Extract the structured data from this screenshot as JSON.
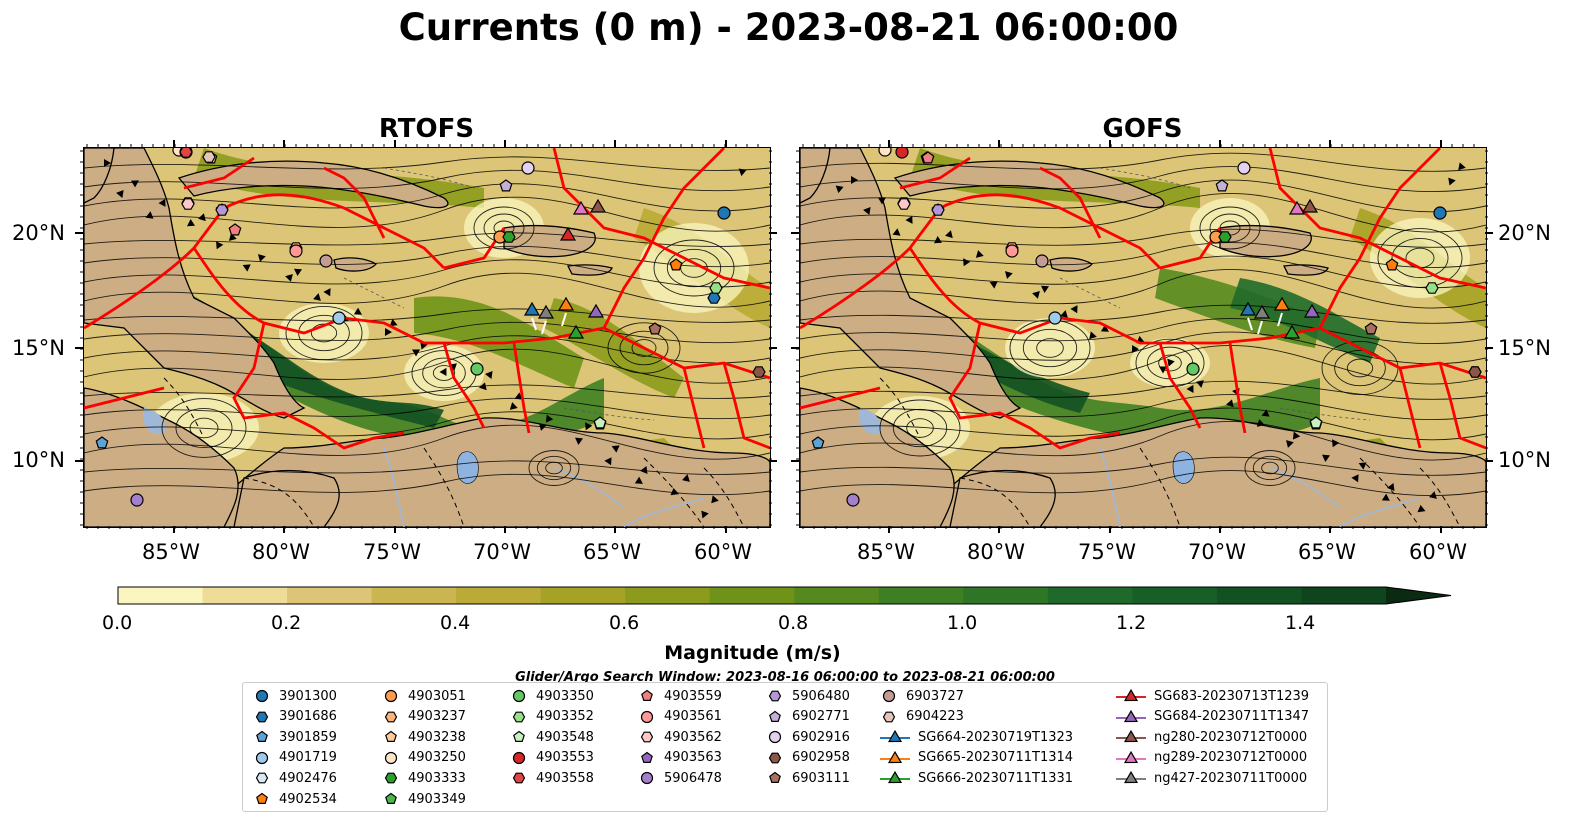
{
  "title": "Currents (0 m) - 2023-08-21 06:00:00",
  "panels": [
    {
      "title": "RTOFS",
      "variant": 0
    },
    {
      "title": "GOFS",
      "variant": 1
    }
  ],
  "axes": {
    "x_ticks": [
      "85°W",
      "80°W",
      "75°W",
      "70°W",
      "65°W",
      "60°W"
    ],
    "y_ticks": [
      "20°N",
      "15°N",
      "10°N"
    ]
  },
  "colorbar": {
    "label": "Magnitude (m/s)",
    "ticks": [
      "0.0",
      "0.2",
      "0.4",
      "0.6",
      "0.8",
      "1.0",
      "1.2",
      "1.4"
    ],
    "extend": "max",
    "colors": [
      "#fbf6c0",
      "#eedc99",
      "#dcc576",
      "#cbb550",
      "#b9ab35",
      "#a6a226",
      "#8c9b1b",
      "#6f9318",
      "#55891f",
      "#3f7f23",
      "#2e7526",
      "#1f6a2a",
      "#175f27",
      "#125222",
      "#0f441c",
      "#0d3616",
      "#0b2a12"
    ]
  },
  "search_window": "Glider/Argo Search Window: 2023-08-16 06:00:00 to 2023-08-21 06:00:00",
  "legend": {
    "columns": [
      [
        {
          "label": "3901300",
          "marker": "circle",
          "color": "#1f77b4"
        },
        {
          "label": "3901686",
          "marker": "hexagon",
          "color": "#1f77b4"
        },
        {
          "label": "3901859",
          "marker": "pentagon",
          "color": "#5fa2d4"
        },
        {
          "label": "4901719",
          "marker": "circle",
          "color": "#9fcbea"
        },
        {
          "label": "4902476",
          "marker": "hexagon",
          "color": "#d7e9f7"
        },
        {
          "label": "4902534",
          "marker": "pentagon",
          "color": "#ff7f0e"
        }
      ],
      [
        {
          "label": "4903051",
          "marker": "circle",
          "color": "#ff9d4d"
        },
        {
          "label": "4903237",
          "marker": "hexagon",
          "color": "#ffb27a"
        },
        {
          "label": "4903238",
          "marker": "pentagon",
          "color": "#ffcc99"
        },
        {
          "label": "4903250",
          "marker": "circle",
          "color": "#ffe5c8"
        },
        {
          "label": "4903333",
          "marker": "hexagon",
          "color": "#2ca02c"
        },
        {
          "label": "4903349",
          "marker": "pentagon",
          "color": "#48b948"
        }
      ],
      [
        {
          "label": "4903350",
          "marker": "circle",
          "color": "#64c864"
        },
        {
          "label": "4903352",
          "marker": "hexagon",
          "color": "#98df8a"
        },
        {
          "label": "4903548",
          "marker": "pentagon",
          "color": "#c8f0c0"
        },
        {
          "label": "4903553",
          "marker": "circle",
          "color": "#d62728"
        },
        {
          "label": "4903558",
          "marker": "hexagon",
          "color": "#e04546"
        }
      ],
      [
        {
          "label": "4903559",
          "marker": "pentagon",
          "color": "#f08080"
        },
        {
          "label": "4903561",
          "marker": "circle",
          "color": "#ff9896"
        },
        {
          "label": "4903562",
          "marker": "hexagon",
          "color": "#ffc8c8"
        },
        {
          "label": "4903563",
          "marker": "pentagon",
          "color": "#9467bd"
        },
        {
          "label": "5906478",
          "marker": "circle",
          "color": "#a47fcc"
        }
      ],
      [
        {
          "label": "5906480",
          "marker": "hexagon",
          "color": "#b596d6"
        },
        {
          "label": "6902771",
          "marker": "pentagon",
          "color": "#c5b0d5"
        },
        {
          "label": "6902916",
          "marker": "circle",
          "color": "#e2d2f0"
        },
        {
          "label": "6902958",
          "marker": "hexagon",
          "color": "#8c564b"
        },
        {
          "label": "6903111",
          "marker": "pentagon",
          "color": "#a87060"
        }
      ],
      [
        {
          "label": "6903727",
          "marker": "circle",
          "color": "#c49c94"
        },
        {
          "label": "6904223",
          "marker": "hexagon",
          "color": "#e5c4ba"
        },
        {
          "label": "SG664-20230719T1323",
          "marker": "triangle",
          "color": "#1f77b4",
          "line": true
        },
        {
          "label": "SG665-20230711T1314",
          "marker": "triangle",
          "color": "#ff7f0e",
          "line": true
        },
        {
          "label": "SG666-20230711T1331",
          "marker": "triangle",
          "color": "#2ca02c",
          "line": true
        }
      ],
      [
        {
          "label": "SG683-20230713T1239",
          "marker": "triangle",
          "color": "#d62728",
          "line": true
        },
        {
          "label": "SG684-20230711T1347",
          "marker": "triangle",
          "color": "#9467bd",
          "line": true
        },
        {
          "label": "ng280-20230712T0000",
          "marker": "triangle",
          "color": "#8c564b",
          "line": true
        },
        {
          "label": "ng289-20230712T0000",
          "marker": "triangle",
          "color": "#e377c2",
          "line": true
        },
        {
          "label": "ng427-20230711T0000",
          "marker": "triangle",
          "color": "#7f7f7f",
          "line": true
        }
      ]
    ]
  },
  "map_colors": {
    "land": "#cdae84",
    "eez": "#ff0000",
    "lake": "#8eb3e0",
    "river": "#a0b8d8"
  }
}
